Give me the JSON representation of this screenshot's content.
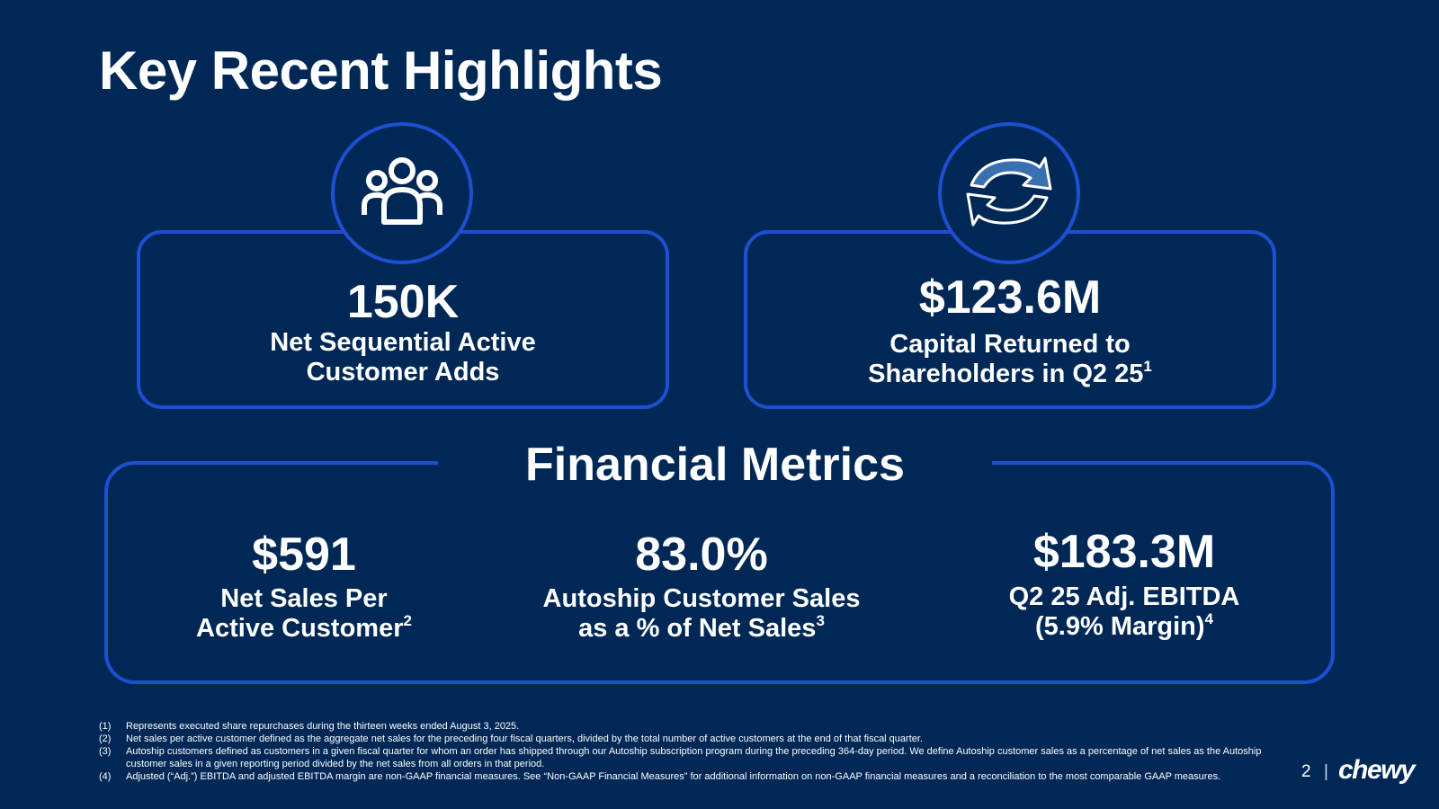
{
  "page_title": "Key Recent Highlights",
  "highlights": [
    {
      "icon": "customers-group-icon",
      "value": "150K",
      "label_line1": "Net Sequential Active",
      "label_line2": "Customer Adds"
    },
    {
      "icon": "refresh-arrows-icon",
      "value": "$123.6M",
      "label_line1": "Capital Returned to",
      "label_line2": "Shareholders in Q2 25",
      "footnote": "1"
    }
  ],
  "financial_metrics": {
    "title": "Financial Metrics",
    "items": [
      {
        "value": "$591",
        "label_line1": "Net Sales Per",
        "label_line2": "Active Customer",
        "footnote": "2"
      },
      {
        "value": "83.0%",
        "label_line1": "Autoship Customer Sales",
        "label_line2": "as a % of Net Sales",
        "footnote": "3"
      },
      {
        "value": "$183.3M",
        "label_line1": "Q2 25 Adj. EBITDA",
        "label_line2": "(5.9% Margin)",
        "footnote": "4"
      }
    ]
  },
  "footnotes": [
    {
      "num": "(1)",
      "text": "Represents executed share repurchases during the thirteen weeks ended August 3, 2025."
    },
    {
      "num": "(2)",
      "text": "Net sales per active customer defined as the aggregate net sales for the preceding four fiscal quarters, divided by the total number of active customers at the end of that fiscal quarter."
    },
    {
      "num": "(3)",
      "text": "Autoship customers defined as customers in a given fiscal quarter for whom an order has shipped through our Autoship subscription program during the preceding 364-day period. We define Autoship customer sales as a percentage of net sales as the Autoship customer sales in a given reporting period divided by the net sales from all orders in that period."
    },
    {
      "num": "(4)",
      "text": "Adjusted (“Adj.”) EBITDA and adjusted EBITDA margin are non-GAAP financial measures. See “Non-GAAP Financial Measures” for additional information on non-GAAP financial measures and a reconciliation to the most comparable GAAP measures."
    }
  ],
  "page_number": "2",
  "separator": "|",
  "brand": "chewy",
  "colors": {
    "background": "#002856",
    "accent": "#1f4fd1",
    "text": "#ffffff"
  }
}
